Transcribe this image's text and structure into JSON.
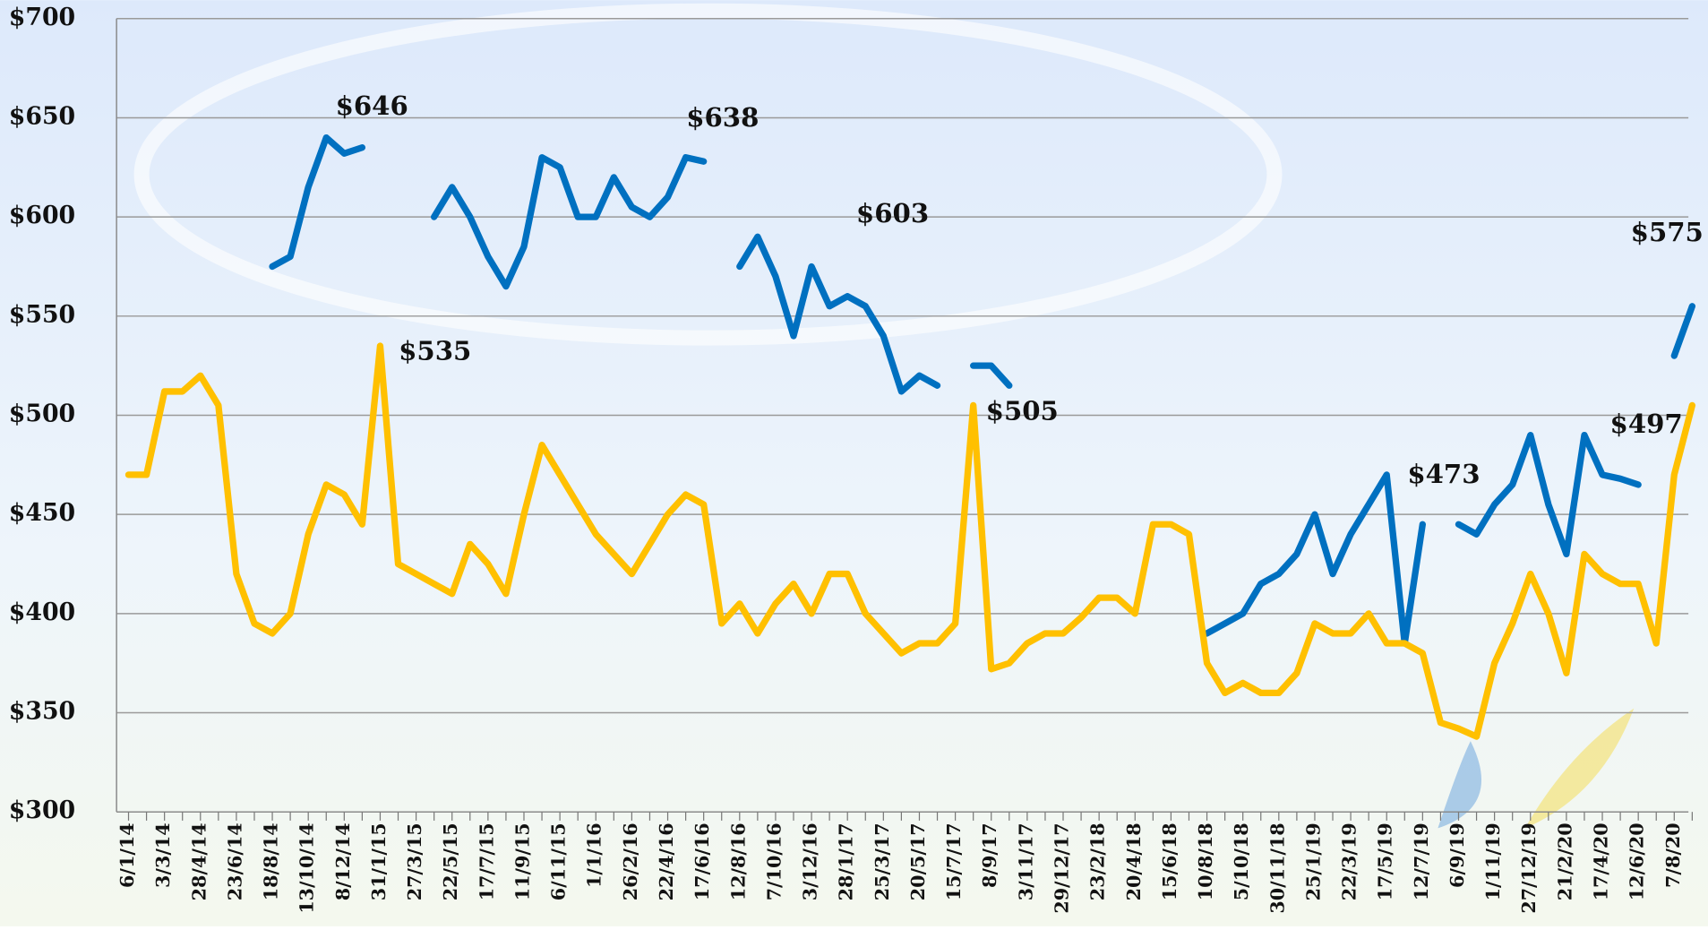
{
  "chart_data": {
    "type": "line",
    "categories": [
      "6/1/14",
      null,
      "3/3/14",
      null,
      "28/4/14",
      null,
      "23/6/14",
      null,
      "18/8/14",
      null,
      "13/10/14",
      null,
      "8/12/14",
      null,
      "31/1/15",
      null,
      "27/3/15",
      null,
      "22/5/15",
      null,
      "17/7/15",
      null,
      "11/9/15",
      null,
      "6/11/15",
      null,
      "1/1/16",
      null,
      "26/2/16",
      null,
      "22/4/16",
      null,
      "17/6/16",
      null,
      "12/8/16",
      null,
      "7/10/16",
      null,
      "3/12/16",
      null,
      "28/1/17",
      null,
      "25/3/17",
      null,
      "20/5/17",
      null,
      "15/7/17",
      null,
      "8/9/17",
      null,
      "3/11/17",
      null,
      "29/12/17",
      null,
      "23/2/18",
      null,
      "20/4/18",
      null,
      "15/6/18",
      null,
      "10/8/18",
      null,
      "5/10/18",
      null,
      "30/11/18",
      null,
      "25/1/19",
      null,
      "22/3/19",
      null,
      "17/5/19",
      null,
      "12/7/19",
      null,
      "6/9/19",
      null,
      "1/11/19",
      null,
      "27/12/19",
      null,
      "21/2/20",
      null,
      "17/4/20",
      null,
      "12/6/20",
      null,
      "7/8/20",
      null
    ],
    "series": [
      {
        "color": "#0070c0",
        "values": [
          null,
          null,
          null,
          null,
          null,
          null,
          null,
          null,
          575,
          580,
          615,
          640,
          632,
          635,
          null,
          null,
          null,
          600,
          615,
          600,
          580,
          565,
          585,
          630,
          625,
          600,
          600,
          620,
          605,
          600,
          610,
          630,
          628,
          null,
          575,
          590,
          570,
          540,
          575,
          555,
          560,
          555,
          540,
          512,
          520,
          515,
          null,
          525,
          525,
          515,
          null,
          null,
          null,
          null,
          null,
          null,
          null,
          null,
          null,
          null,
          390,
          395,
          400,
          415,
          420,
          430,
          450,
          420,
          440,
          455,
          470,
          385,
          445,
          null,
          445,
          440,
          455,
          465,
          490,
          455,
          430,
          490,
          470,
          468,
          465,
          null,
          530,
          555
        ]
      },
      {
        "color": "#ffc000",
        "values": [
          470,
          470,
          512,
          512,
          520,
          505,
          420,
          395,
          390,
          400,
          440,
          465,
          460,
          445,
          535,
          425,
          420,
          415,
          410,
          435,
          425,
          410,
          450,
          485,
          470,
          455,
          440,
          430,
          420,
          435,
          450,
          460,
          455,
          395,
          405,
          390,
          405,
          415,
          400,
          420,
          420,
          400,
          390,
          380,
          385,
          385,
          395,
          505,
          372,
          375,
          385,
          390,
          390,
          398,
          408,
          408,
          400,
          445,
          445,
          440,
          375,
          360,
          365,
          360,
          360,
          370,
          395,
          390,
          390,
          400,
          385,
          385,
          380,
          345,
          342,
          338,
          375,
          395,
          420,
          400,
          370,
          430,
          420,
          415,
          415,
          385,
          470,
          505
        ]
      }
    ],
    "annotations": [
      "$646",
      "$535",
      "$638",
      "$603",
      "$505",
      "$473",
      "$497",
      "$575"
    ],
    "ylim": [
      300,
      700
    ],
    "yticks": [
      {
        "value": 300,
        "label": "$300"
      },
      {
        "value": 350,
        "label": "$350"
      },
      {
        "value": 400,
        "label": "$400"
      },
      {
        "value": 450,
        "label": "$450"
      },
      {
        "value": 500,
        "label": "$500"
      },
      {
        "value": 550,
        "label": "$550"
      },
      {
        "value": 600,
        "label": "$600"
      },
      {
        "value": 650,
        "label": "$650"
      },
      {
        "value": 700,
        "label": "$700"
      }
    ],
    "grid": true
  }
}
